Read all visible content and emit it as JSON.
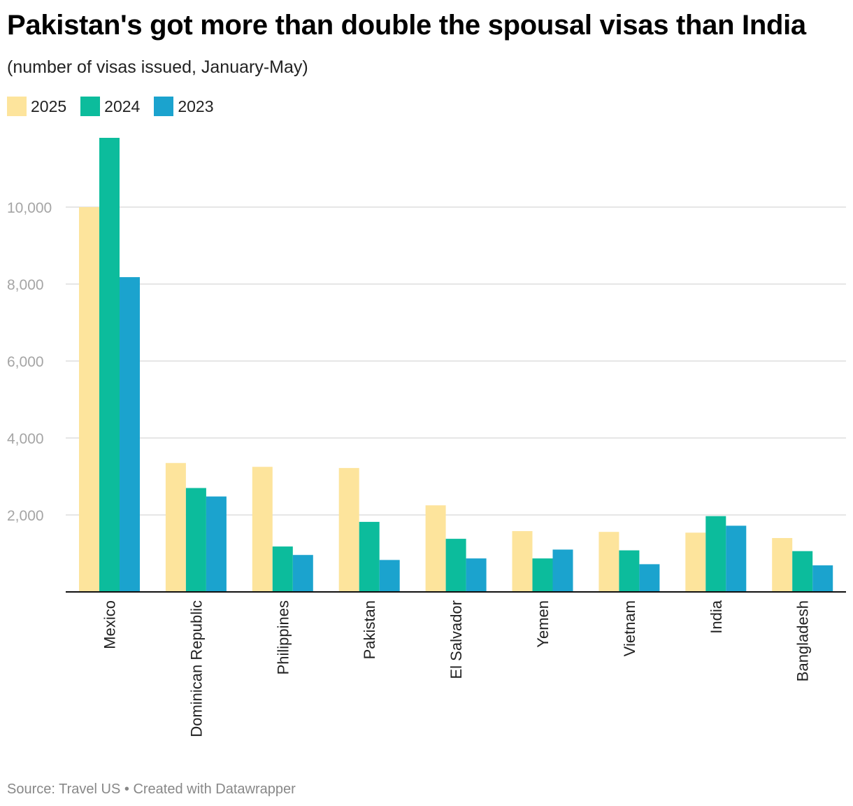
{
  "title": "Pakistan's got more than double the spousal visas than India",
  "subtitle": "(number of visas issued, January-May)",
  "footer": {
    "source": "Source: Travel US",
    "separator": "•",
    "credit": "Created with Datawrapper"
  },
  "colors": {
    "2025": "#fde49c",
    "2024": "#0cbc9c",
    "2023": "#1ba3ce",
    "grid": "#dedede",
    "axis": "#111111",
    "tick_text": "#a5a5a5"
  },
  "chart_data": {
    "type": "bar",
    "categories": [
      "Mexico",
      "Dominican Republic",
      "Philippines",
      "Pakistan",
      "El Salvador",
      "Yemen",
      "Vietnam",
      "India",
      "Bangladesh"
    ],
    "series": [
      {
        "name": "2025",
        "values": [
          10000,
          3350,
          3250,
          3220,
          2250,
          1580,
          1560,
          1540,
          1400
        ]
      },
      {
        "name": "2024",
        "values": [
          11800,
          2700,
          1180,
          1820,
          1380,
          870,
          1080,
          1970,
          1060
        ]
      },
      {
        "name": "2023",
        "values": [
          8180,
          2480,
          960,
          830,
          870,
          1100,
          720,
          1720,
          690
        ]
      }
    ],
    "yticks": [
      2000,
      4000,
      6000,
      8000,
      10000
    ],
    "ytick_labels": [
      "2,000",
      "4,000",
      "6,000",
      "8,000",
      "10,000"
    ],
    "ylim": [
      0,
      12000
    ],
    "grid": true,
    "legend_position": "top-left",
    "xlabel": "",
    "ylabel": ""
  }
}
